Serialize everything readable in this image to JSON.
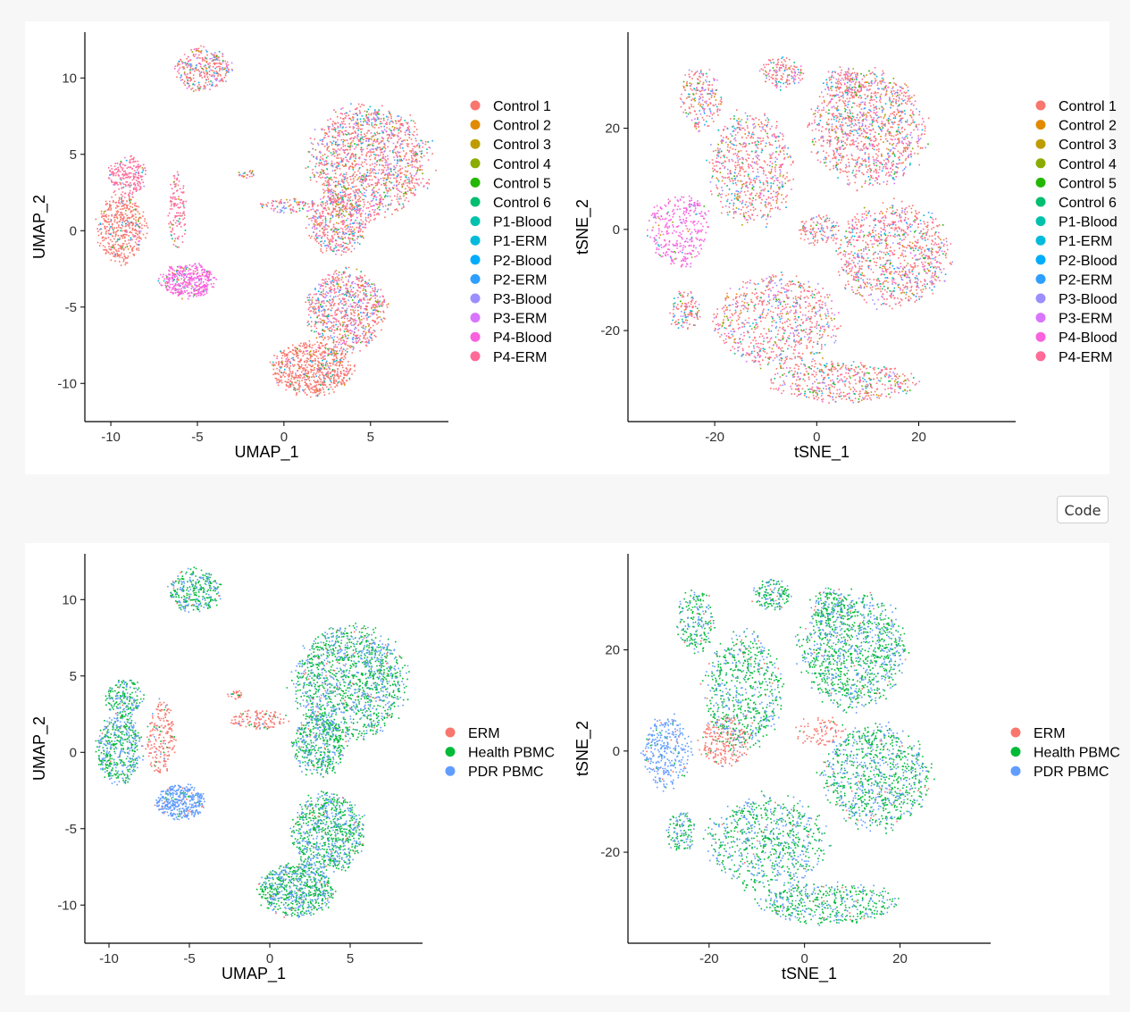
{
  "code_button": {
    "label": "Code"
  },
  "chart_data": [
    {
      "type": "scatter",
      "projection": "UMAP",
      "title": "",
      "xlabel": "UMAP_1",
      "ylabel": "UMAP_2",
      "xlim": [
        -11.5,
        9.5
      ],
      "ylim": [
        -12.5,
        13
      ],
      "xticks": [
        -10,
        -5,
        0,
        5
      ],
      "yticks": [
        -10,
        -5,
        0,
        5,
        10
      ],
      "grid": false,
      "legend_position": "right",
      "series": [
        {
          "name": "Control 1",
          "color": "#F8766D"
        },
        {
          "name": "Control 2",
          "color": "#E18A00"
        },
        {
          "name": "Control 3",
          "color": "#BE9C00"
        },
        {
          "name": "Control 4",
          "color": "#8CAB00"
        },
        {
          "name": "Control 5",
          "color": "#24B700"
        },
        {
          "name": "Control 6",
          "color": "#00BE70"
        },
        {
          "name": "P1-Blood",
          "color": "#00C1AB"
        },
        {
          "name": "P1-ERM",
          "color": "#00BBDA"
        },
        {
          "name": "P2-Blood",
          "color": "#00ACFC"
        },
        {
          "name": "P2-ERM",
          "color": "#2E9FFF"
        },
        {
          "name": "P3-Blood",
          "color": "#9B8EFF"
        },
        {
          "name": "P3-ERM",
          "color": "#D874FD"
        },
        {
          "name": "P4-Blood",
          "color": "#F962DD"
        },
        {
          "name": "P4-ERM",
          "color": "#FF6A98"
        }
      ]
    },
    {
      "type": "scatter",
      "projection": "tSNE",
      "title": "",
      "xlabel": "tSNE_1",
      "ylabel": "tSNE_2",
      "xlim": [
        -37,
        39
      ],
      "ylim": [
        -38,
        39
      ],
      "xticks": [
        -20,
        0,
        20
      ],
      "yticks": [
        -20,
        0,
        20
      ],
      "grid": false,
      "legend_position": "right",
      "series": [
        {
          "name": "Control 1",
          "color": "#F8766D"
        },
        {
          "name": "Control 2",
          "color": "#E18A00"
        },
        {
          "name": "Control 3",
          "color": "#BE9C00"
        },
        {
          "name": "Control 4",
          "color": "#8CAB00"
        },
        {
          "name": "Control 5",
          "color": "#24B700"
        },
        {
          "name": "Control 6",
          "color": "#00BE70"
        },
        {
          "name": "P1-Blood",
          "color": "#00C1AB"
        },
        {
          "name": "P1-ERM",
          "color": "#00BBDA"
        },
        {
          "name": "P2-Blood",
          "color": "#00ACFC"
        },
        {
          "name": "P2-ERM",
          "color": "#2E9FFF"
        },
        {
          "name": "P3-Blood",
          "color": "#9B8EFF"
        },
        {
          "name": "P3-ERM",
          "color": "#D874FD"
        },
        {
          "name": "P4-Blood",
          "color": "#F962DD"
        },
        {
          "name": "P4-ERM",
          "color": "#FF6A98"
        }
      ]
    },
    {
      "type": "scatter",
      "projection": "UMAP",
      "title": "",
      "xlabel": "UMAP_1",
      "ylabel": "UMAP_2",
      "xlim": [
        -11.5,
        9.5
      ],
      "ylim": [
        -12.5,
        13
      ],
      "xticks": [
        -10,
        -5,
        0,
        5
      ],
      "yticks": [
        -10,
        -5,
        0,
        5,
        10
      ],
      "grid": false,
      "legend_position": "right",
      "series": [
        {
          "name": "ERM",
          "color": "#F8766D"
        },
        {
          "name": "Health PBMC",
          "color": "#00BA38"
        },
        {
          "name": "PDR PBMC",
          "color": "#619CFF"
        }
      ]
    },
    {
      "type": "scatter",
      "projection": "tSNE",
      "title": "",
      "xlabel": "tSNE_1",
      "ylabel": "tSNE_2",
      "xlim": [
        -37,
        39
      ],
      "ylim": [
        -38,
        39
      ],
      "xticks": [
        -20,
        0,
        20
      ],
      "yticks": [
        -20,
        0,
        20
      ],
      "grid": false,
      "legend_position": "right",
      "series": [
        {
          "name": "ERM",
          "color": "#F8766D"
        },
        {
          "name": "Health PBMC",
          "color": "#00BA38"
        },
        {
          "name": "PDR PBMC",
          "color": "#619CFF"
        }
      ]
    }
  ]
}
